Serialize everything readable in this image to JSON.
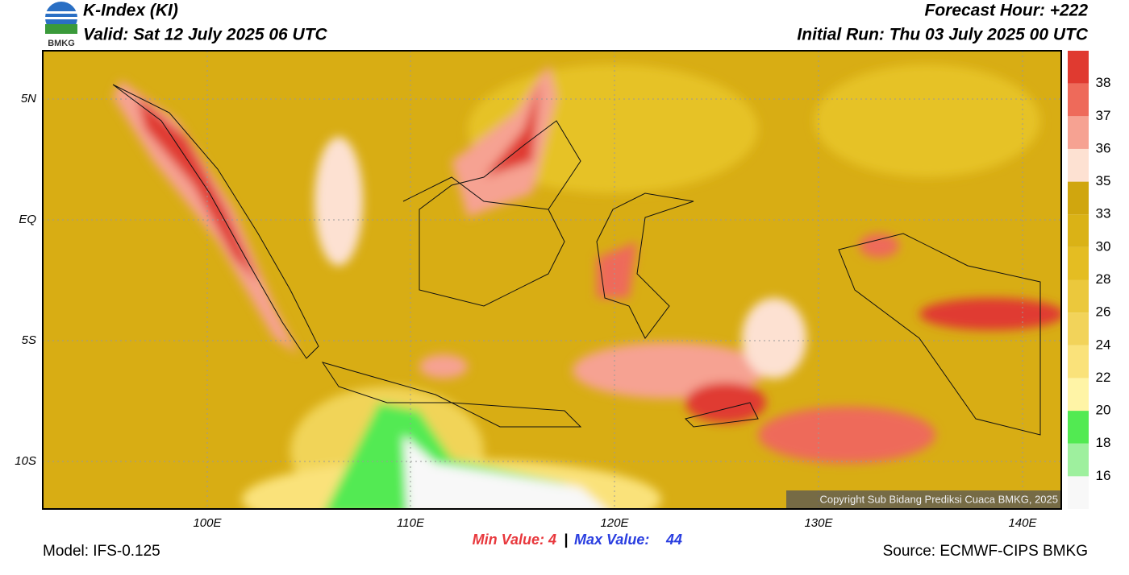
{
  "header": {
    "logo_text": "BMKG",
    "title": "K-Index (KI)",
    "valid": "Valid: Sat 12 July 2025 06 UTC",
    "forecast_hour": "Forecast Hour: +222",
    "initial_run": "Initial Run: Thu 03 July 2025 00 UTC"
  },
  "map": {
    "lon_labels": [
      "100E",
      "110E",
      "120E",
      "130E",
      "140E"
    ],
    "lat_labels": [
      "5N",
      "EQ",
      "5S",
      "10S"
    ],
    "copyright": "Copyright Sub Bidang Prediksi Cuaca BMKG, 2025"
  },
  "colorbar": {
    "labels": [
      16,
      18,
      20,
      22,
      24,
      26,
      28,
      30,
      33,
      35,
      36,
      37,
      38
    ],
    "colors": [
      "#f8f8f8",
      "#9ef09e",
      "#52ea52",
      "#fff4a6",
      "#fae27a",
      "#f2d35a",
      "#ebc83c",
      "#e4bd22",
      "#dab216",
      "#d0a60e",
      "#fde1d2",
      "#f6a292",
      "#ee6a5a",
      "#e03a30"
    ]
  },
  "footer": {
    "min_label": "Min Value:",
    "min_value": 4,
    "separator": "|",
    "max_label": "Max Value:",
    "max_value": 44,
    "model": "Model: IFS-0.125",
    "source": "Source: ECMWF-CIPS BMKG"
  }
}
